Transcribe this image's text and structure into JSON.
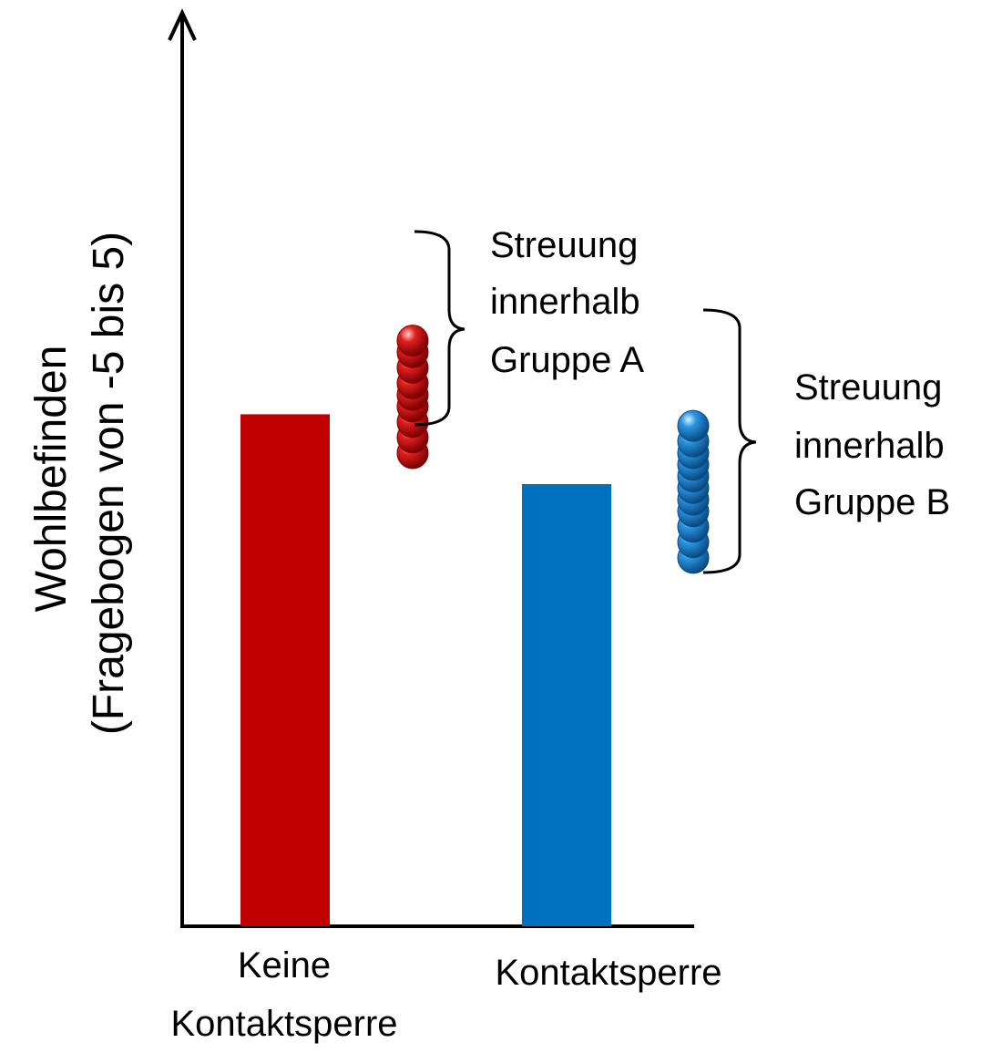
{
  "chart_data": {
    "type": "bar",
    "ylabel": [
      "Wohlbefinden",
      "(Fragebogen von -5 bis 5)"
    ],
    "categories": [
      [
        "Keine",
        "Kontaktsperre"
      ],
      [
        "Kontaktsperre"
      ]
    ],
    "values": [
      1.1,
      0.2
    ],
    "ylim": [
      -5.5,
      5.5
    ],
    "colors": [
      "#c00000",
      "#0070c0"
    ],
    "spread": [
      {
        "group": "A",
        "min": 0.5,
        "max": 2.1,
        "points": [
          0.6,
          0.8,
          1.0,
          1.2,
          1.35,
          1.5,
          1.7,
          1.9,
          2.05
        ],
        "color": "#d11a1a",
        "label": [
          "Streuung",
          "innerhalb",
          "Gruppe A"
        ]
      },
      {
        "group": "B",
        "min": -0.85,
        "max": 1.1,
        "points": [
          -0.75,
          -0.55,
          -0.35,
          -0.15,
          0.0,
          0.15,
          0.3,
          0.45,
          0.6,
          0.75,
          0.95
        ],
        "color": "#1f8ad8",
        "label": [
          "Streuung",
          "innerhalb",
          "Gruppe B"
        ]
      }
    ],
    "grid": false,
    "legend": "none"
  }
}
